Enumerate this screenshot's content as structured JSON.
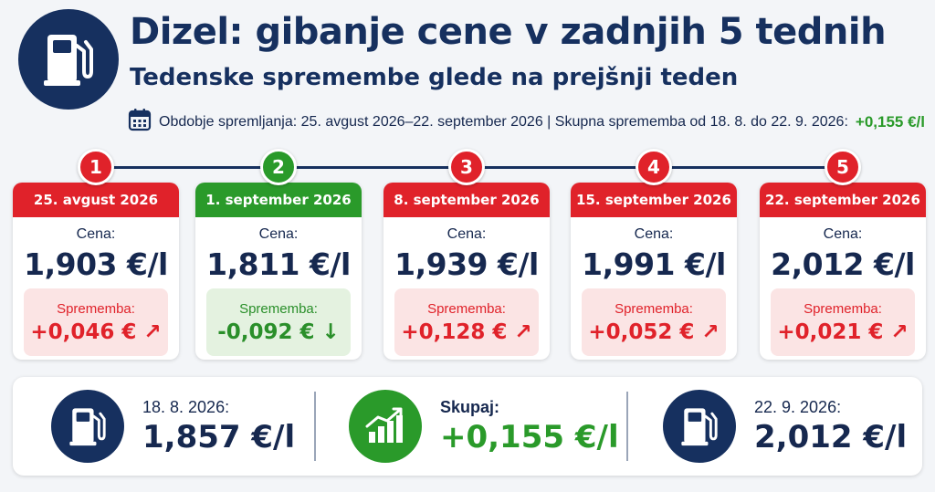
{
  "header": {
    "title": "Dizel: gibanje cene v zadnjih 5 tednih",
    "subtitle": "Tedenske spremembe glede na prejšnji teden",
    "meta_text": "Obdobje spremljanja: 25. avgust 2026–22. september 2026 | Skupna sprememba od 18. 8. do 22. 9. 2026:",
    "meta_total": "+0,155 €/l",
    "icon": "fuel-pump-icon",
    "calendar_icon": "calendar-icon"
  },
  "colors": {
    "navy": "#16305f",
    "red": "#e0222a",
    "green": "#2a9a2a"
  },
  "weeks": [
    {
      "step": "1",
      "date": "25. avgust 2026",
      "price_label": "Cena:",
      "price": "1,903 €/l",
      "change_label": "Sprememba:",
      "change": "+0,046 € ↗",
      "direction": "up"
    },
    {
      "step": "2",
      "date": "1. september 2026",
      "price_label": "Cena:",
      "price": "1,811 €/l",
      "change_label": "Sprememba:",
      "change": "-0,092 € ↓",
      "direction": "down"
    },
    {
      "step": "3",
      "date": "8. september 2026",
      "price_label": "Cena:",
      "price": "1,939 €/l",
      "change_label": "Sprememba:",
      "change": "+0,128 € ↗",
      "direction": "up"
    },
    {
      "step": "4",
      "date": "15. september 2026",
      "price_label": "Cena:",
      "price": "1,991 €/l",
      "change_label": "Sprememba:",
      "change": "+0,052 € ↗",
      "direction": "up"
    },
    {
      "step": "5",
      "date": "22. september 2026",
      "price_label": "Cena:",
      "price": "2,012 €/l",
      "change_label": "Sprememba:",
      "change": "+0,021 € ↗",
      "direction": "up"
    }
  ],
  "summary": {
    "start": {
      "label": "18. 8. 2026:",
      "value": "1,857 €/l",
      "icon": "fuel-pump-icon"
    },
    "total": {
      "label": "Skupaj:",
      "value": "+0,155 €/l",
      "icon": "growth-chart-icon"
    },
    "end": {
      "label": "22. 9. 2026:",
      "value": "2,012 €/l",
      "icon": "fuel-pump-icon"
    }
  }
}
